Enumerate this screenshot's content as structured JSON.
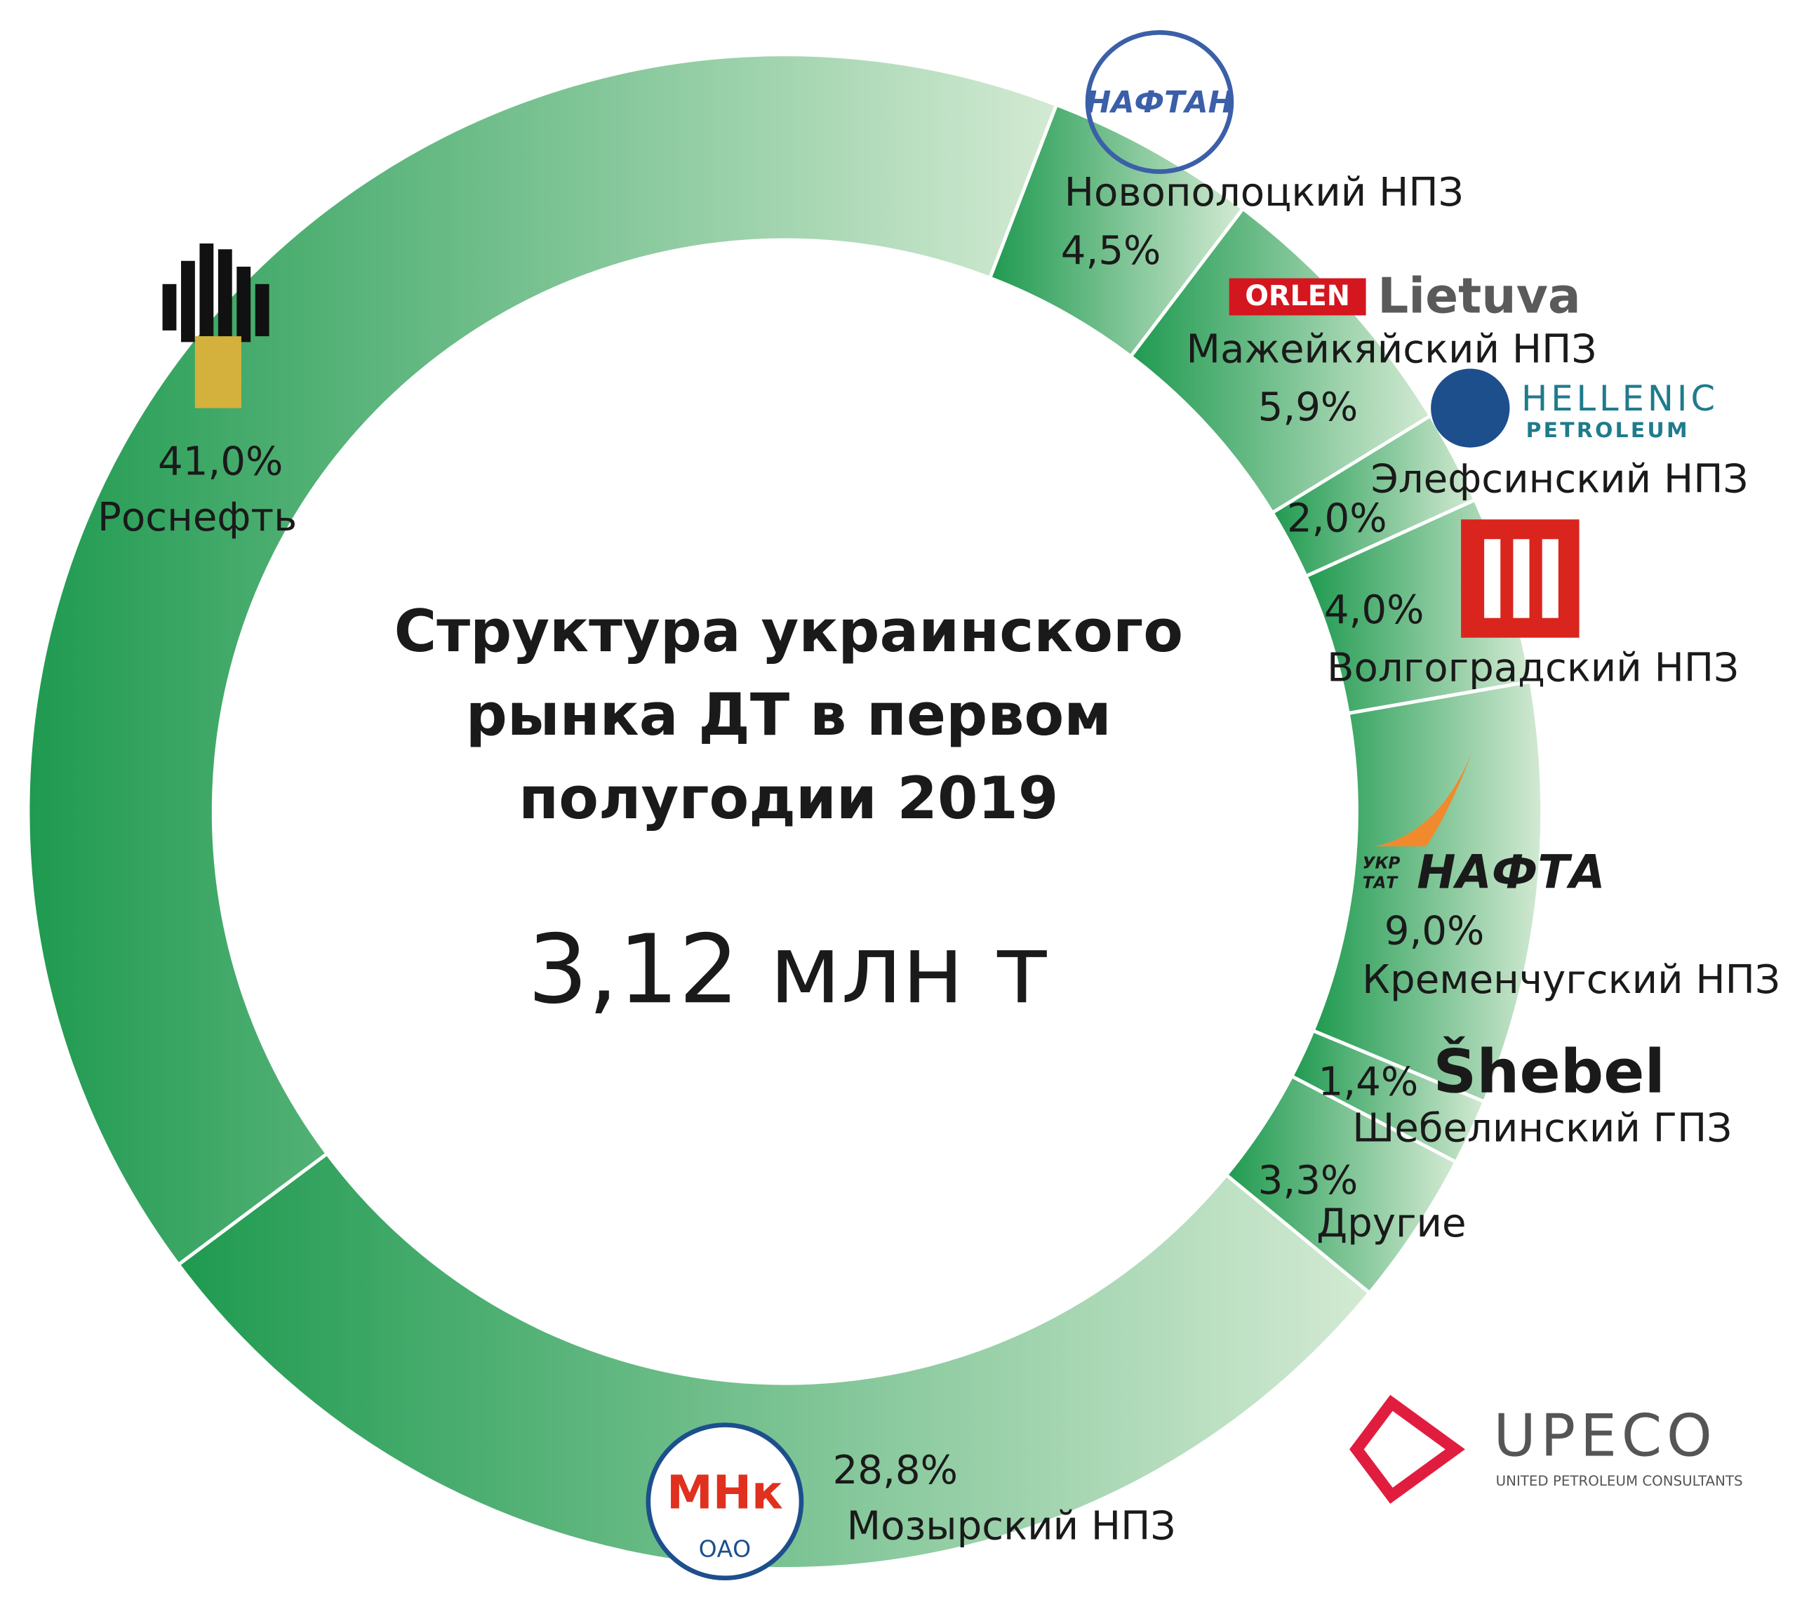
{
  "chart_data": {
    "type": "donut",
    "title": [
      "Структура украинского",
      "рынка ДТ в первом",
      "полугодии 2019"
    ],
    "total": "3,12 млн т",
    "categories": [
      "Новополоцкий НПЗ",
      "Мажейкяйский НПЗ",
      "Элефсинский НПЗ",
      "Волгоградский НПЗ",
      "Кременчугский НПЗ",
      "Шебелинский ГПЗ",
      "Другие",
      "Мозырский НПЗ",
      "Роснефть"
    ],
    "values": [
      4.5,
      5.9,
      2.0,
      4.0,
      9.0,
      1.4,
      3.3,
      28.8,
      41.0
    ],
    "value_labels": [
      "4,5%",
      "5,9%",
      "2,0%",
      "4,0%",
      "9,0%",
      "1,4%",
      "3,3%",
      "28,8%",
      "41,0%"
    ],
    "color": "#1f9a50"
  },
  "logos": [
    "НАФТАН",
    "ORLEN",
    "Lietuva",
    "HELLENIC",
    "PETROLEUM",
    "УКР",
    "ТАТ",
    "НАФТА",
    "Šhebel",
    "UPECO",
    "UNITED PETROLEUM CONSULTANTS",
    "ОАО"
  ]
}
